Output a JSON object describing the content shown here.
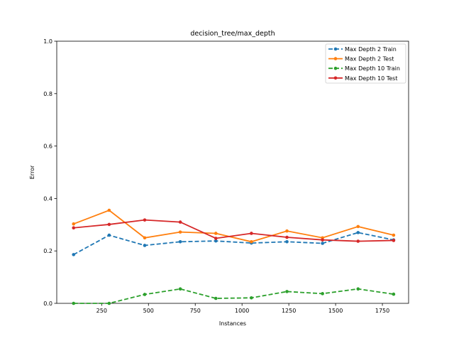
{
  "chart_data": {
    "type": "line",
    "title": "decision_tree/max_depth",
    "xlabel": "Instances",
    "ylabel": "Error",
    "xlim": [
      10,
      1890
    ],
    "ylim": [
      0,
      1.0
    ],
    "xticks": [
      250,
      500,
      750,
      1000,
      1250,
      1500,
      1750
    ],
    "yticks": [
      0.0,
      0.2,
      0.4,
      0.6,
      0.8,
      1.0
    ],
    "ytick_labels": [
      "0.0",
      "0.2",
      "0.4",
      "0.6",
      "0.8",
      "1.0"
    ],
    "grid": false,
    "legend_position": "top-right",
    "x": [
      100,
      290,
      480,
      670,
      860,
      1050,
      1240,
      1430,
      1620,
      1810
    ],
    "series": [
      {
        "name": "Max Depth 2 Train",
        "color": "#1f77b4",
        "style": "dashed",
        "values": [
          0.186,
          0.26,
          0.221,
          0.235,
          0.238,
          0.23,
          0.235,
          0.229,
          0.27,
          0.242
        ]
      },
      {
        "name": "Max Depth 2 Test",
        "color": "#ff7f0e",
        "style": "solid",
        "values": [
          0.303,
          0.355,
          0.25,
          0.272,
          0.267,
          0.235,
          0.276,
          0.25,
          0.293,
          0.26
        ]
      },
      {
        "name": "Max Depth 10 Train",
        "color": "#2ca02c",
        "style": "dashed",
        "values": [
          0.0,
          0.0,
          0.034,
          0.055,
          0.019,
          0.021,
          0.045,
          0.037,
          0.055,
          0.035
        ]
      },
      {
        "name": "Max Depth 10 Test",
        "color": "#d62728",
        "style": "solid",
        "values": [
          0.288,
          0.301,
          0.318,
          0.31,
          0.248,
          0.267,
          0.252,
          0.242,
          0.237,
          0.24
        ]
      }
    ]
  }
}
